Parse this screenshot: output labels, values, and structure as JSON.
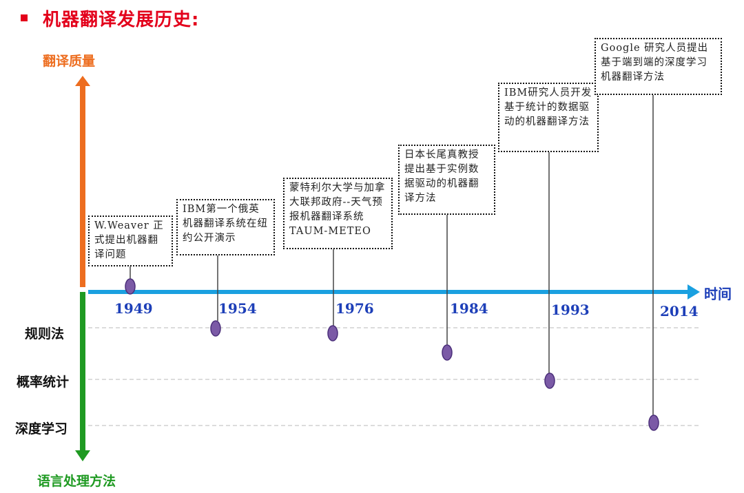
{
  "title": "机器翻译发展历史:",
  "y_axis": {
    "top_label": "翻译质量",
    "bottom_label": "语言处理方法"
  },
  "x_axis": {
    "label": "时间"
  },
  "categories": [
    "规则法",
    "概率统计",
    "深度学习"
  ],
  "colors": {
    "title": "#e3001b",
    "quality_arrow": "#ed6d1f",
    "method_arrow": "#1f9a22",
    "time_arrow": "#1aa0e0",
    "year_text": "#1d3fb8",
    "marker": "#7b5aa6"
  },
  "events": [
    {
      "year": "1949",
      "text": "W.Weaver 正式提出机器翻译问题"
    },
    {
      "year": "1954",
      "text": "IBM第一个俄英机器翻译系统在纽约公开演示"
    },
    {
      "year": "1976",
      "text": "蒙特利尔大学与加拿大联邦政府--天气预报机器翻译系统TAUM-METEO"
    },
    {
      "year": "1984",
      "text": "日本长尾真教授提出基于实例数据驱动的机器翻译方法"
    },
    {
      "year": "1993",
      "text": "IBM研究人员开发基于统计的数据驱动的机器翻译方法"
    },
    {
      "year": "2014",
      "text": "Google 研究人员提出基于端到端的深度学习机器翻译方法"
    }
  ]
}
